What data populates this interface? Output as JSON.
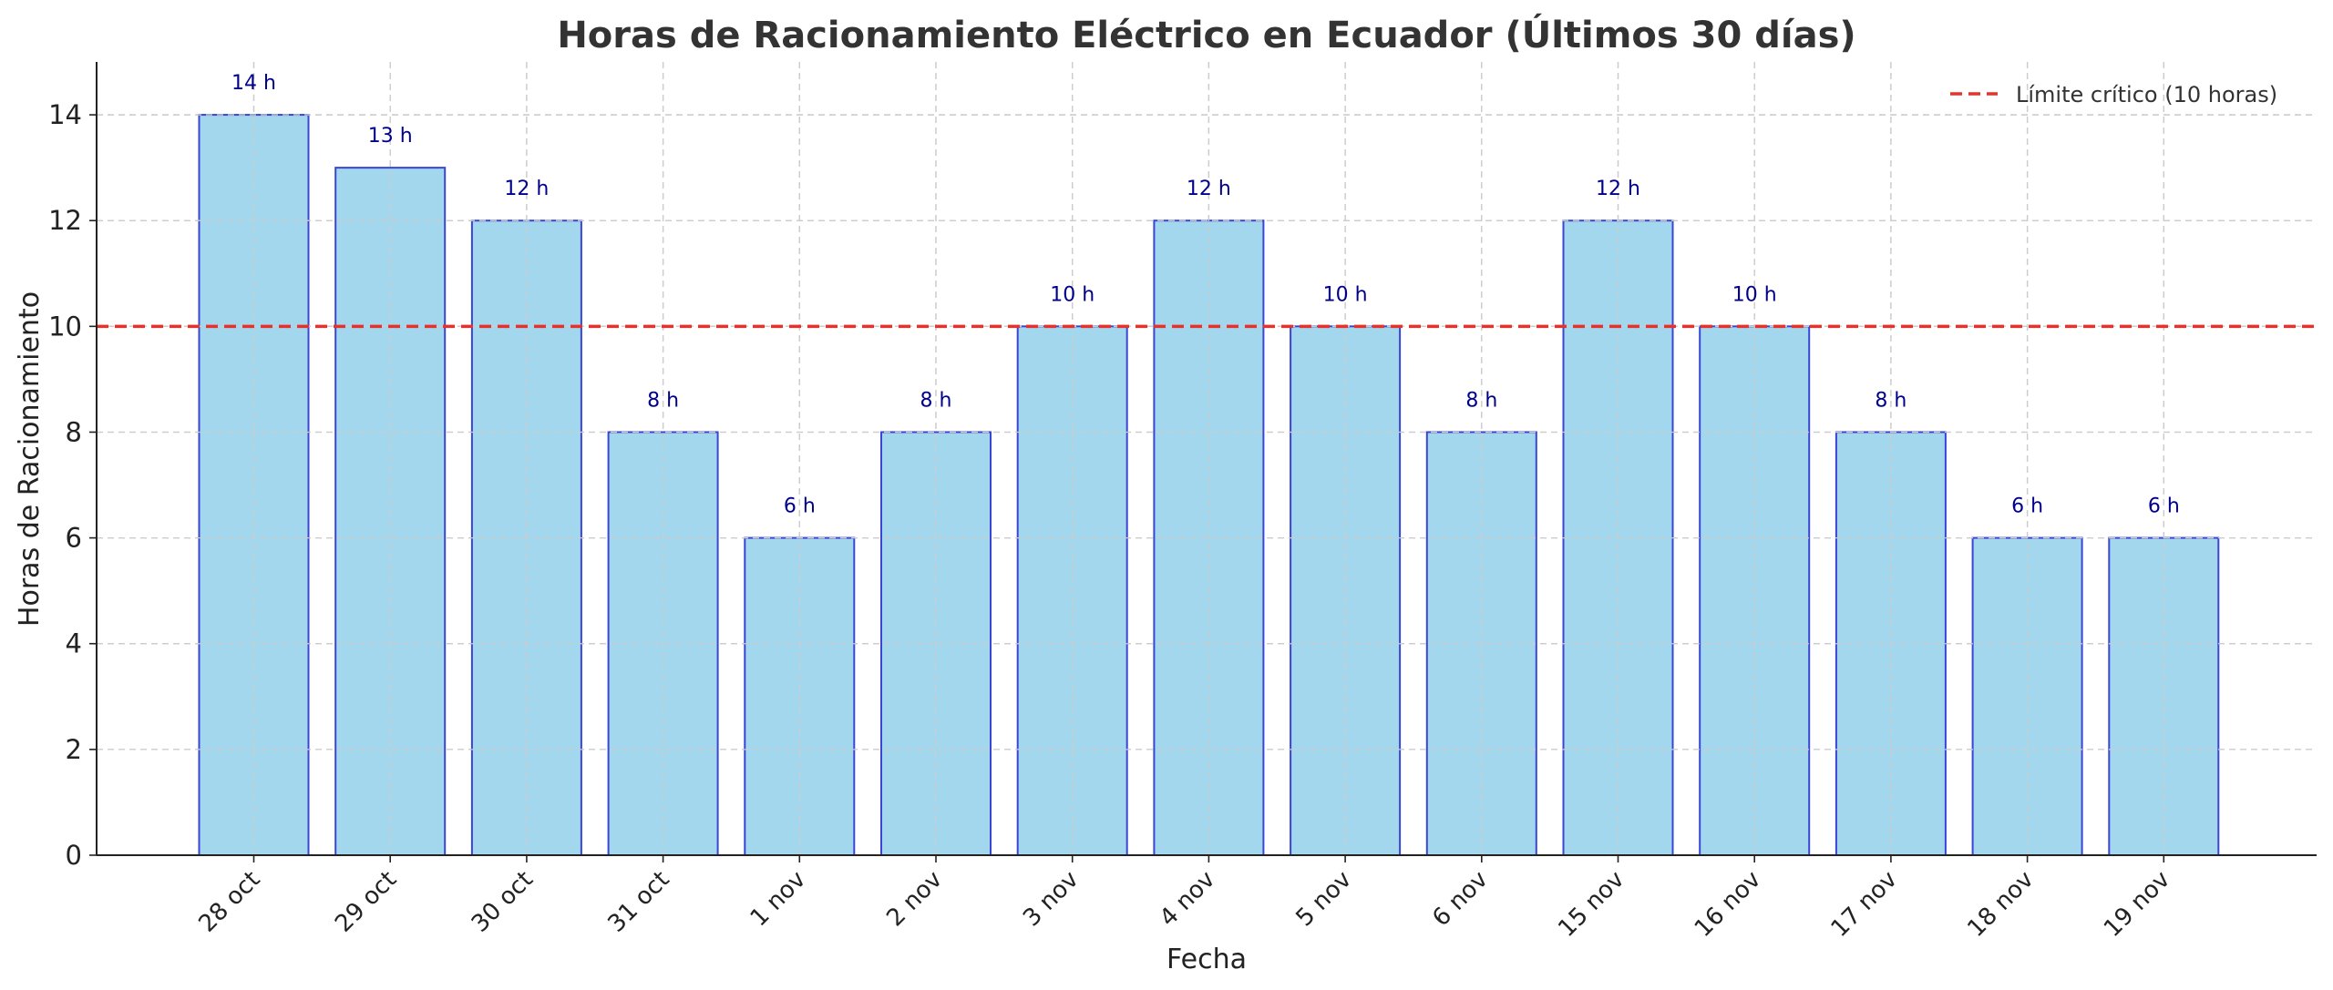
{
  "chart_data": {
    "type": "bar",
    "title": "Horas de Racionamiento Eléctrico en Ecuador (Últimos 30 días)",
    "xlabel": "Fecha",
    "ylabel": "Horas de Racionamiento",
    "categories": [
      "28 oct",
      "29 oct",
      "30 oct",
      "31 oct",
      "1 nov",
      "2 nov",
      "3 nov",
      "4 nov",
      "5 nov",
      "6 nov",
      "15 nov",
      "16 nov",
      "17 nov",
      "18 nov",
      "19 nov"
    ],
    "values": [
      14,
      13,
      12,
      8,
      6,
      8,
      10,
      12,
      10,
      8,
      12,
      10,
      8,
      6,
      6
    ],
    "value_labels": [
      "14 h",
      "13 h",
      "12 h",
      "8 h",
      "6 h",
      "8 h",
      "10 h",
      "12 h",
      "10 h",
      "8 h",
      "12 h",
      "10 h",
      "8 h",
      "6 h",
      "6 h"
    ],
    "ylim": [
      0,
      15
    ],
    "yticks": [
      0,
      2,
      4,
      6,
      8,
      10,
      12,
      14
    ],
    "grid": true,
    "reference_line": {
      "value": 10,
      "label": "Límite crítico (10 horas)",
      "style": "dashed",
      "color": "#e8312b"
    },
    "legend_position": "top-right",
    "colors": {
      "bar_fill": "#a2d7ed",
      "bar_edge": "#3a45d6",
      "value_label": "#00008b",
      "grid": "#cccccc"
    }
  }
}
